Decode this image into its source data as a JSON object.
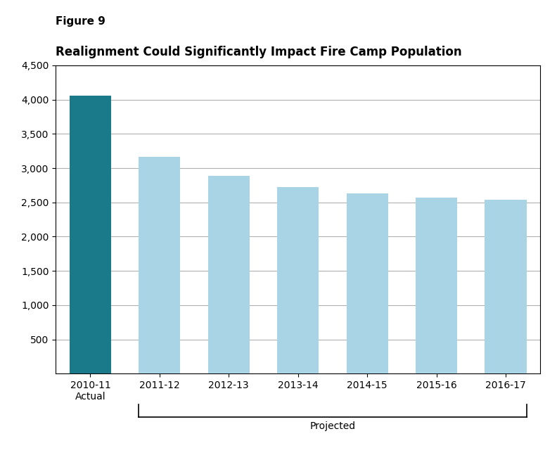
{
  "chart_data": {
    "type": "bar",
    "title": "Realignment Could Significantly Impact Fire Camp Population",
    "categories": [
      "2010-11\nActual",
      "2011-12",
      "2012-13",
      "2013-14",
      "2014-15",
      "2015-16",
      "2016-17"
    ],
    "values": [
      4055,
      3160,
      2890,
      2720,
      2630,
      2570,
      2535
    ],
    "colors": [
      "#1a7a8a",
      "#a8d4e6",
      "#a8d4e6",
      "#a8d4e6",
      "#a8d4e6",
      "#a8d4e6",
      "#a8d4e6"
    ],
    "ylim": [
      0,
      4500
    ],
    "yticks": [
      500,
      {
        "value": 1000,
        "label": "1,000"
      },
      {
        "value": 1500,
        "label": "1,500"
      },
      {
        "value": 2000,
        "label": "2,000"
      },
      {
        "value": 2500,
        "label": "2,500"
      },
      {
        "value": 3000,
        "label": "3,000"
      },
      {
        "value": 3500,
        "label": "3,500"
      },
      {
        "value": 4000,
        "label": "4,000"
      },
      {
        "value": 4500,
        "label": "4,500"
      }
    ],
    "grid": true,
    "annotations": [
      {
        "text": "Figure 9"
      },
      {
        "text": "Projected",
        "span": [
          "2011-12",
          "2016-17"
        ]
      }
    ]
  }
}
